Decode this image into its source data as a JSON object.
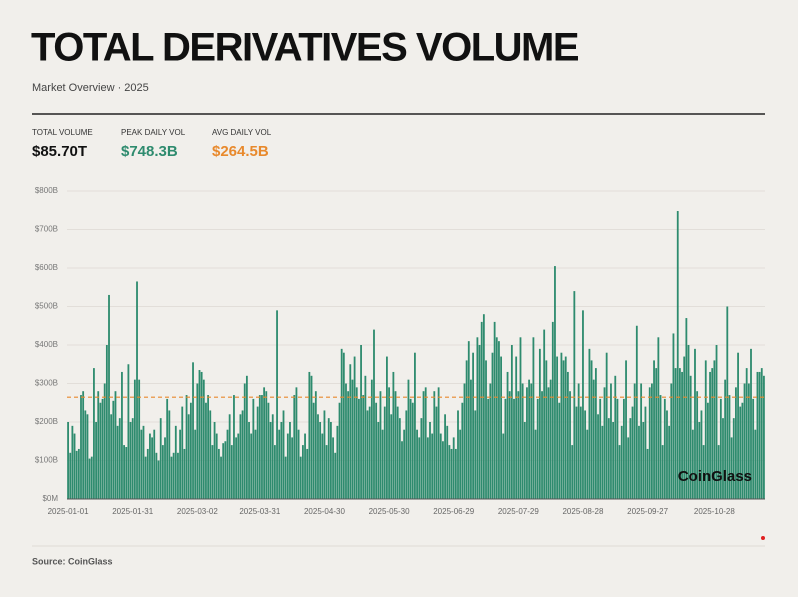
{
  "header": {
    "title": "TOTAL DERIVATIVES VOLUME",
    "subtitle": "Market Overview · 2025"
  },
  "stats": [
    {
      "label": "TOTAL VOLUME",
      "value": "$85.70T",
      "color": "#111111"
    },
    {
      "label": "PEAK DAILY VOL",
      "value": "$748.3B",
      "color": "#2e8b6e"
    },
    {
      "label": "AVG DAILY VOL",
      "value": "$264.5B",
      "color": "#e8892c"
    }
  ],
  "chart_data": {
    "type": "bar",
    "color": "#2e8b6e",
    "grid": true,
    "ylim": [
      0,
      800
    ],
    "yticks": [
      {
        "value": 0,
        "label": "$0M"
      },
      {
        "value": 100,
        "label": "$100B"
      },
      {
        "value": 200,
        "label": "$200B"
      },
      {
        "value": 300,
        "label": "$300B"
      },
      {
        "value": 400,
        "label": "$400B"
      },
      {
        "value": 500,
        "label": "$500B"
      },
      {
        "value": 600,
        "label": "$600B"
      },
      {
        "value": 700,
        "label": "$700B"
      },
      {
        "value": 800,
        "label": "$800B"
      }
    ],
    "reference_line": {
      "value": 264.5,
      "color": "#e8892c"
    },
    "watermark": "CoinGlass",
    "categories": [
      "2025-01-01",
      null,
      null,
      null,
      null,
      null,
      null,
      null,
      null,
      null,
      null,
      null,
      null,
      null,
      null,
      null,
      null,
      null,
      null,
      null,
      null,
      null,
      null,
      null,
      null,
      null,
      null,
      null,
      null,
      null,
      "2025-01-31",
      null,
      null,
      null,
      null,
      null,
      null,
      null,
      null,
      null,
      null,
      null,
      null,
      null,
      null,
      null,
      null,
      null,
      null,
      null,
      null,
      null,
      null,
      null,
      null,
      null,
      null,
      null,
      null,
      null,
      "2025-03-02",
      null,
      null,
      null,
      null,
      null,
      null,
      null,
      null,
      null,
      null,
      null,
      null,
      null,
      null,
      null,
      null,
      null,
      null,
      null,
      null,
      null,
      null,
      null,
      null,
      null,
      null,
      null,
      null,
      "2025-03-31",
      null,
      null,
      null,
      null,
      null,
      null,
      null,
      null,
      null,
      null,
      null,
      null,
      null,
      null,
      null,
      null,
      null,
      null,
      null,
      null,
      null,
      null,
      null,
      null,
      null,
      null,
      null,
      null,
      null,
      "2025-04-30",
      null,
      null,
      null,
      null,
      null,
      null,
      null,
      null,
      null,
      null,
      null,
      null,
      null,
      null,
      null,
      null,
      null,
      null,
      null,
      null,
      null,
      null,
      null,
      null,
      null,
      null,
      null,
      null,
      null,
      "2025-05-30",
      null,
      null,
      null,
      null,
      null,
      null,
      null,
      null,
      null,
      null,
      null,
      null,
      null,
      null,
      null,
      null,
      null,
      null,
      null,
      null,
      null,
      null,
      null,
      null,
      null,
      null,
      null,
      null,
      null,
      "2025-06-29",
      null,
      null,
      null,
      null,
      null,
      null,
      null,
      null,
      null,
      null,
      null,
      null,
      null,
      null,
      null,
      null,
      null,
      null,
      null,
      null,
      null,
      null,
      null,
      null,
      null,
      null,
      null,
      null,
      null,
      "2025-07-29",
      null,
      null,
      null,
      null,
      null,
      null,
      null,
      null,
      null,
      null,
      null,
      null,
      null,
      null,
      null,
      null,
      null,
      null,
      null,
      null,
      null,
      null,
      null,
      null,
      null,
      null,
      null,
      null,
      null,
      "2025-08-28",
      null,
      null,
      null,
      null,
      null,
      null,
      null,
      null,
      null,
      null,
      null,
      null,
      null,
      null,
      null,
      null,
      null,
      null,
      null,
      null,
      null,
      null,
      null,
      null,
      null,
      null,
      null,
      null,
      null,
      "2025-09-27",
      null,
      null,
      null,
      null,
      null,
      null,
      null,
      null,
      null,
      null,
      null,
      null,
      null,
      null,
      null,
      null,
      null,
      null,
      null,
      null,
      null,
      null,
      null,
      null,
      null,
      null,
      null,
      null,
      null,
      null,
      "2025-10-28",
      null,
      null,
      null,
      null,
      null,
      null,
      null,
      null,
      null,
      null,
      null,
      null,
      null,
      null,
      null,
      null,
      null,
      null,
      null,
      null,
      null,
      null,
      null
    ],
    "values": [
      200,
      120,
      190,
      170,
      125,
      130,
      270,
      280,
      230,
      220,
      105,
      110,
      340,
      200,
      280,
      250,
      260,
      300,
      400,
      530,
      220,
      255,
      280,
      190,
      210,
      330,
      140,
      135,
      350,
      200,
      210,
      310,
      565,
      310,
      180,
      190,
      110,
      130,
      170,
      160,
      180,
      120,
      100,
      210,
      140,
      160,
      260,
      230,
      110,
      120,
      190,
      120,
      180,
      240,
      130,
      270,
      220,
      250,
      355,
      180,
      300,
      335,
      330,
      310,
      250,
      270,
      230,
      140,
      200,
      170,
      130,
      110,
      145,
      150,
      180,
      220,
      140,
      270,
      160,
      170,
      220,
      230,
      300,
      320,
      200,
      170,
      260,
      180,
      240,
      270,
      270,
      290,
      280,
      250,
      200,
      220,
      140,
      490,
      180,
      200,
      230,
      110,
      170,
      200,
      160,
      270,
      290,
      180,
      110,
      140,
      170,
      130,
      330,
      320,
      250,
      280,
      220,
      200,
      170,
      230,
      140,
      210,
      200,
      160,
      120,
      190,
      250,
      390,
      380,
      300,
      280,
      350,
      310,
      370,
      290,
      260,
      400,
      270,
      320,
      230,
      240,
      310,
      440,
      250,
      200,
      280,
      180,
      240,
      370,
      290,
      220,
      330,
      280,
      240,
      210,
      150,
      180,
      230,
      310,
      260,
      250,
      380,
      180,
      160,
      210,
      280,
      290,
      160,
      200,
      170,
      280,
      240,
      290,
      170,
      150,
      220,
      190,
      140,
      130,
      160,
      130,
      230,
      180,
      250,
      300,
      360,
      410,
      310,
      380,
      230,
      420,
      400,
      460,
      480,
      360,
      260,
      300,
      380,
      460,
      420,
      410,
      370,
      170,
      260,
      330,
      280,
      400,
      260,
      370,
      280,
      420,
      300,
      200,
      290,
      310,
      300,
      420,
      180,
      260,
      390,
      280,
      440,
      360,
      290,
      310,
      460,
      605,
      370,
      250,
      380,
      360,
      370,
      330,
      280,
      140,
      540,
      240,
      300,
      240,
      490,
      230,
      180,
      390,
      360,
      310,
      340,
      220,
      260,
      190,
      290,
      380,
      210,
      300,
      200,
      320,
      260,
      140,
      190,
      260,
      360,
      160,
      210,
      240,
      300,
      450,
      190,
      300,
      200,
      240,
      130,
      290,
      300,
      360,
      340,
      420,
      270,
      140,
      260,
      230,
      190,
      300,
      430,
      340,
      748,
      340,
      330,
      370,
      470,
      400,
      320,
      180,
      390,
      280,
      200,
      230,
      140,
      360,
      250,
      330,
      340,
      360,
      400,
      140,
      260,
      210,
      310,
      500,
      270,
      160,
      210,
      290,
      380,
      240,
      250,
      300,
      340,
      300,
      390,
      260,
      180,
      330,
      330,
      340,
      320
    ]
  },
  "source": "Source: CoinGlass"
}
